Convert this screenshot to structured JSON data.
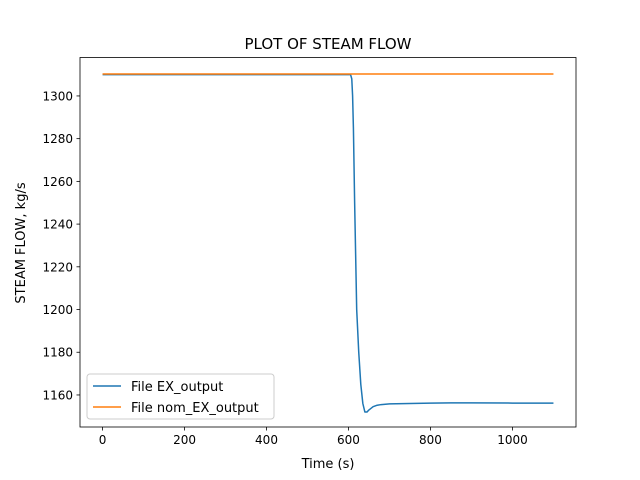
{
  "chart_data": {
    "type": "line",
    "title": "PLOT OF STEAM FLOW",
    "xlabel": "Time (s)",
    "ylabel": "STEAM FLOW, kg/s",
    "xlim": [
      -55,
      1155
    ],
    "ylim": [
      1145,
      1318
    ],
    "xticks": [
      0,
      200,
      400,
      600,
      800,
      1000
    ],
    "yticks": [
      1160,
      1180,
      1200,
      1220,
      1240,
      1260,
      1280,
      1300
    ],
    "grid": false,
    "legend_position": "lower-left",
    "series": [
      {
        "name": "File EX_output",
        "color": "#1f77b4",
        "x": [
          0,
          200,
          400,
          600,
          605,
          608,
          610,
          612,
          615,
          620,
          625,
          630,
          635,
          640,
          645,
          650,
          660,
          670,
          680,
          700,
          750,
          800,
          850,
          900,
          1000,
          1100
        ],
        "y": [
          1310,
          1310,
          1310,
          1310,
          1310,
          1308,
          1300,
          1285,
          1250,
          1200,
          1180,
          1165,
          1156,
          1152,
          1152,
          1153,
          1154.5,
          1155.2,
          1155.5,
          1155.8,
          1156,
          1156.2,
          1156.3,
          1156.3,
          1156.2,
          1156.2
        ]
      },
      {
        "name": "File nom_EX_output",
        "color": "#ff7f0e",
        "x": [
          0,
          1100
        ],
        "y": [
          1310.3,
          1310.3
        ]
      }
    ]
  }
}
